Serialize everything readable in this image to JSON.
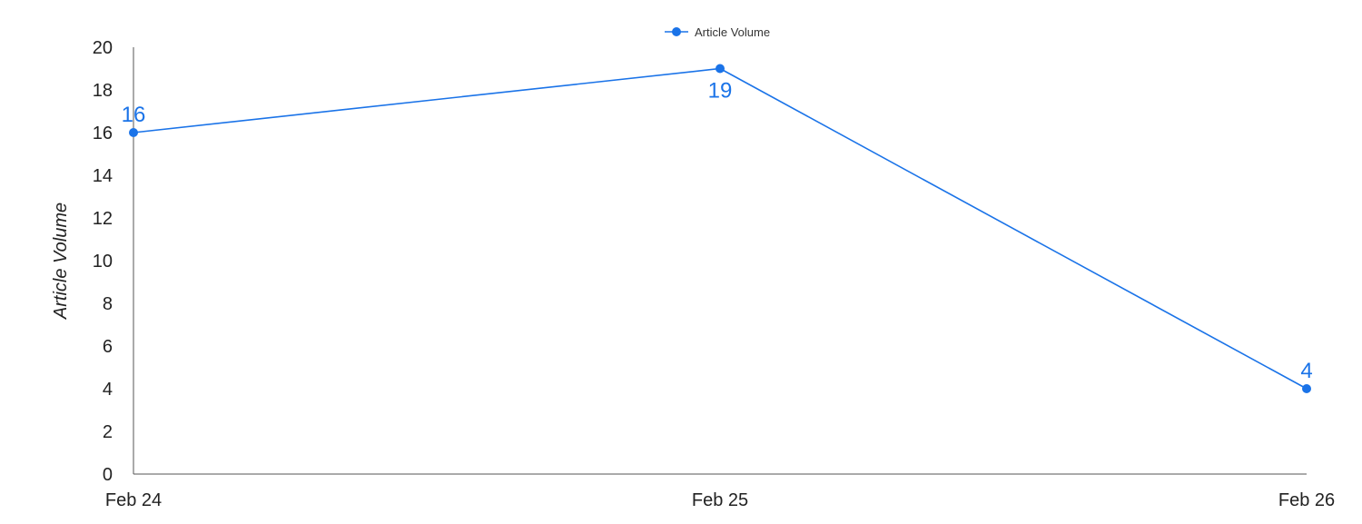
{
  "chart_data": {
    "type": "line",
    "title": "",
    "xlabel": "",
    "ylabel": "Article Volume",
    "categories": [
      "Feb 24",
      "Feb 25",
      "Feb 26"
    ],
    "series": [
      {
        "name": "Article Volume",
        "values": [
          16,
          19,
          4
        ],
        "color": "#1a73e8"
      }
    ],
    "ylim": [
      0,
      20
    ],
    "yticks": [
      0,
      2,
      4,
      6,
      8,
      10,
      12,
      14,
      16,
      18,
      20
    ],
    "data_labels": [
      {
        "text": "16",
        "placement": "above"
      },
      {
        "text": "19",
        "placement": "below"
      },
      {
        "text": "4",
        "placement": "above"
      }
    ],
    "grid": false,
    "legend": {
      "placement": "top-center",
      "entries": [
        "Article Volume"
      ]
    }
  },
  "colors": {
    "axis": "#555555",
    "text": "#222222"
  }
}
